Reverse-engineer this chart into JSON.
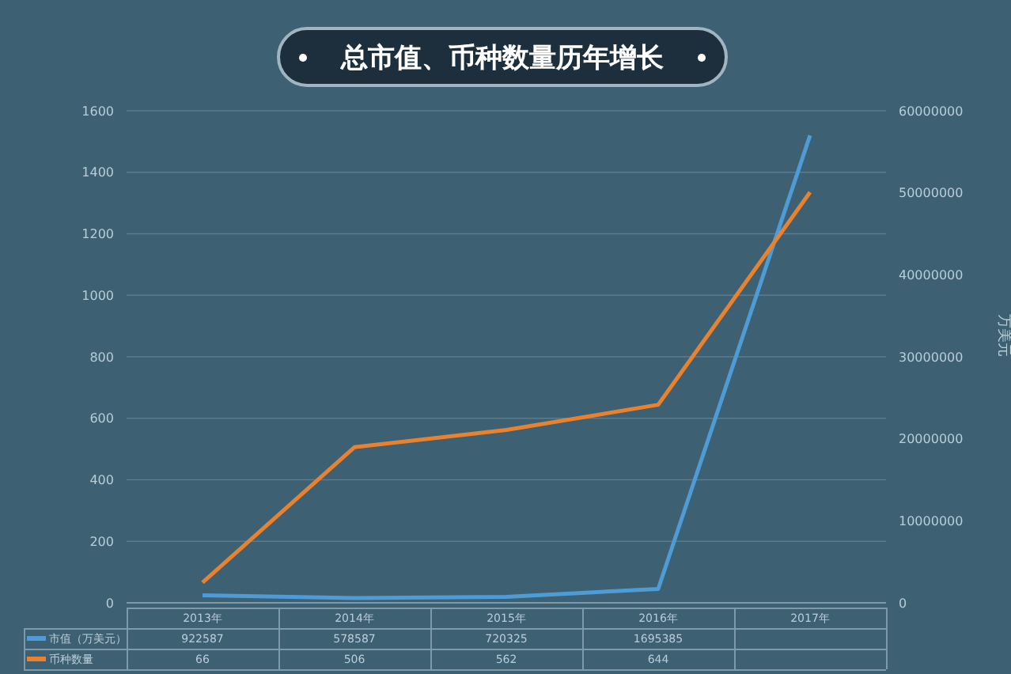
{
  "chart_data": {
    "type": "line",
    "title": "总市值、币种数量历年增长",
    "categories": [
      "2013年",
      "2014年",
      "2015年",
      "2016年",
      "2017年"
    ],
    "series": [
      {
        "name": "市值（万美元）",
        "color": "#4f9bd6",
        "axis": "y2",
        "values": [
          922587,
          578587,
          720325,
          1695385,
          57000000
        ],
        "value_labels": [
          "922587",
          "578587",
          "720325",
          "1695385",
          null
        ]
      },
      {
        "name": "币种数量",
        "color": "#e8822e",
        "values": [
          66,
          506,
          562,
          644,
          1335
        ],
        "value_labels": [
          "66",
          "506",
          "562",
          "644",
          null
        ]
      }
    ],
    "y2label": "万美元",
    "ylim": [
      0,
      1600
    ],
    "yticks": [
      0,
      200,
      400,
      600,
      800,
      1000,
      1200,
      1400,
      1600
    ],
    "y2lim": [
      0,
      60000000
    ],
    "y2ticks": [
      0,
      10000000,
      20000000,
      30000000,
      40000000,
      50000000,
      60000000
    ],
    "grid": "y",
    "legend": "bottom",
    "marker": "none",
    "line_style": "solid"
  }
}
